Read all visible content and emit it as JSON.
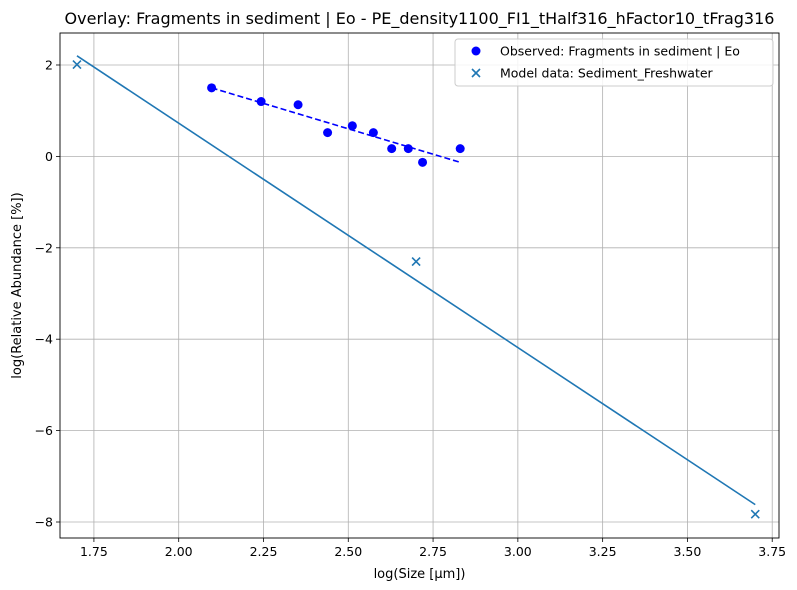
{
  "chart_data": {
    "type": "scatter",
    "title": "Overlay: Fragments in sediment | Eo - PE_density1100_FI1_tHalf316_hFactor10_tFrag316",
    "xlabel": "log(Size [μm])",
    "ylabel": "log(Relative Abundance [%])",
    "xlim": [
      1.65,
      3.77
    ],
    "ylim": [
      -8.35,
      2.7
    ],
    "xticks": [
      1.75,
      2.0,
      2.25,
      2.5,
      2.75,
      3.0,
      3.25,
      3.5,
      3.75
    ],
    "xtick_labels": [
      "1.75",
      "2.00",
      "2.25",
      "2.50",
      "2.75",
      "3.00",
      "3.25",
      "3.50",
      "3.75"
    ],
    "yticks": [
      2,
      0,
      -2,
      -4,
      -6,
      -8
    ],
    "ytick_labels": [
      "2",
      "0",
      "−2",
      "−4",
      "−6",
      "−8"
    ],
    "grid": true,
    "legend_position": "top-right",
    "series": [
      {
        "name": "Observed: Fragments in sediment | Eo",
        "kind": "scatter",
        "marker": "circle",
        "color": "#0000ff",
        "x": [
          2.097,
          2.243,
          2.352,
          2.439,
          2.512,
          2.574,
          2.628,
          2.677,
          2.719,
          2.83
        ],
        "y": [
          1.5,
          1.2,
          1.13,
          0.52,
          0.67,
          0.52,
          0.17,
          0.17,
          -0.13,
          0.17
        ]
      },
      {
        "name": "",
        "kind": "fit-line",
        "style": "dashed",
        "color": "#0000ff",
        "x": [
          2.097,
          2.83
        ],
        "y": [
          1.5,
          -0.13
        ]
      },
      {
        "name": "Model data: Sediment_Freshwater",
        "kind": "scatter",
        "marker": "x",
        "color": "#1f77b4",
        "x": [
          1.7,
          2.7,
          3.7
        ],
        "y": [
          2.01,
          -2.3,
          -7.83
        ]
      },
      {
        "name": "",
        "kind": "fit-line",
        "style": "solid",
        "color": "#1f77b4",
        "x": [
          1.7,
          3.7
        ],
        "y": [
          2.2,
          -7.62
        ]
      }
    ]
  }
}
